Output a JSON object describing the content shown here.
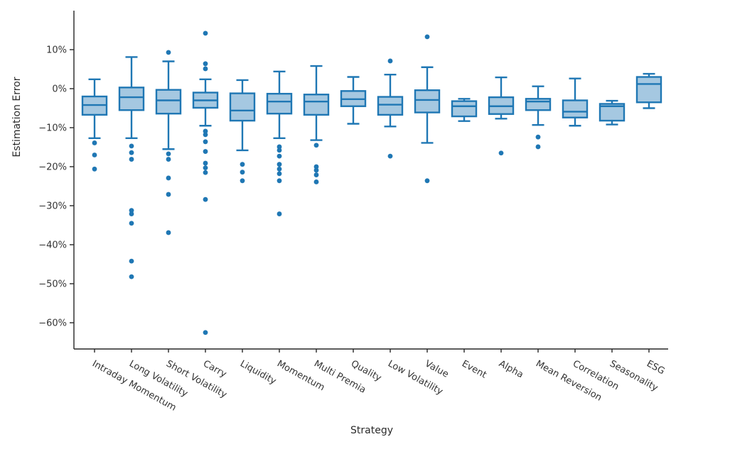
{
  "colors": {
    "box_stroke": "#1f77b4",
    "box_fill": "#a5c8e1",
    "axis": "#262626",
    "text": "#333333",
    "background": "#ffffff"
  },
  "chart_data": {
    "type": "box",
    "title": "",
    "xlabel": "Strategy",
    "ylabel": "Estimation Error",
    "y_unit": "%",
    "ylim": [
      -67,
      20
    ],
    "grid": false,
    "legend": "none",
    "yticks": [
      {
        "value": 10,
        "label": "10%"
      },
      {
        "value": 0,
        "label": "0%"
      },
      {
        "value": -10,
        "label": "−10%"
      },
      {
        "value": -20,
        "label": "−20%"
      },
      {
        "value": -30,
        "label": "−30%"
      },
      {
        "value": -40,
        "label": "−40%"
      },
      {
        "value": -50,
        "label": "−50%"
      },
      {
        "value": -60,
        "label": "−60%"
      }
    ],
    "categories": [
      "Intraday Momentum",
      "Long Volatility",
      "Short Volatility",
      "Carry",
      "Liquidity",
      "Momentum",
      "Multi Premia",
      "Quality",
      "Low Volatility",
      "Value",
      "Event",
      "Alpha",
      "Mean Reversion",
      "Correlation",
      "Seasonality",
      "ESG"
    ],
    "stats": [
      {
        "whislo": -12.7,
        "q1": -6.7,
        "med": -4.2,
        "q3": -2.0,
        "whishi": 2.4,
        "outliers": [
          -13.9,
          -17.0,
          -20.6
        ]
      },
      {
        "whislo": -12.7,
        "q1": -5.5,
        "med": -2.2,
        "q3": 0.3,
        "whishi": 8.1,
        "outliers": [
          -14.7,
          -16.4,
          -18.1,
          -31.2,
          -32.1,
          -34.5,
          -44.2,
          -48.2
        ]
      },
      {
        "whislo": -15.5,
        "q1": -6.4,
        "med": -3.0,
        "q3": -0.3,
        "whishi": 7.0,
        "outliers": [
          9.3,
          -16.7,
          -18.1,
          -22.9,
          -27.1,
          -36.9
        ]
      },
      {
        "whislo": -9.5,
        "q1": -4.9,
        "med": -3.0,
        "q3": -1.0,
        "whishi": 2.4,
        "outliers": [
          14.2,
          6.4,
          5.1,
          -10.9,
          -11.8,
          -13.6,
          -16.1,
          -19.1,
          -20.3,
          -21.5,
          -28.4,
          -62.5
        ]
      },
      {
        "whislo": -15.8,
        "q1": -8.2,
        "med": -5.6,
        "q3": -1.2,
        "whishi": 2.2,
        "outliers": [
          -19.4,
          -21.4,
          -23.6
        ]
      },
      {
        "whislo": -12.7,
        "q1": -6.4,
        "med": -3.3,
        "q3": -1.3,
        "whishi": 4.4,
        "outliers": [
          -14.9,
          -15.8,
          -17.3,
          -19.4,
          -20.6,
          -21.8,
          -23.6,
          -32.1
        ]
      },
      {
        "whislo": -13.2,
        "q1": -6.7,
        "med": -3.3,
        "q3": -1.5,
        "whishi": 5.8,
        "outliers": [
          -14.5,
          -20.0,
          -20.9,
          -22.1,
          -23.9
        ]
      },
      {
        "whislo": -9.0,
        "q1": -4.5,
        "med": -2.7,
        "q3": -0.6,
        "whishi": 3.0,
        "outliers": []
      },
      {
        "whislo": -9.7,
        "q1": -6.7,
        "med": -4.1,
        "q3": -2.1,
        "whishi": 3.6,
        "outliers": [
          7.1,
          -17.3
        ]
      },
      {
        "whislo": -13.9,
        "q1": -6.1,
        "med": -2.9,
        "q3": -0.4,
        "whishi": 5.5,
        "outliers": [
          13.3,
          -23.6
        ]
      },
      {
        "whislo": -8.3,
        "q1": -7.1,
        "med": -4.5,
        "q3": -3.2,
        "whishi": -2.6,
        "outliers": []
      },
      {
        "whislo": -7.7,
        "q1": -6.5,
        "med": -4.5,
        "q3": -2.2,
        "whishi": 2.9,
        "outliers": [
          -16.5
        ]
      },
      {
        "whislo": -9.3,
        "q1": -5.5,
        "med": -3.3,
        "q3": -2.6,
        "whishi": 0.6,
        "outliers": [
          -12.4,
          -14.9
        ]
      },
      {
        "whislo": -9.5,
        "q1": -7.4,
        "med": -5.9,
        "q3": -3.0,
        "whishi": 2.6,
        "outliers": []
      },
      {
        "whislo": -9.2,
        "q1": -8.2,
        "med": -4.5,
        "q3": -3.9,
        "whishi": -3.1,
        "outliers": []
      },
      {
        "whislo": -5.0,
        "q1": -3.5,
        "med": 1.2,
        "q3": 3.0,
        "whishi": 3.8,
        "outliers": []
      }
    ]
  }
}
